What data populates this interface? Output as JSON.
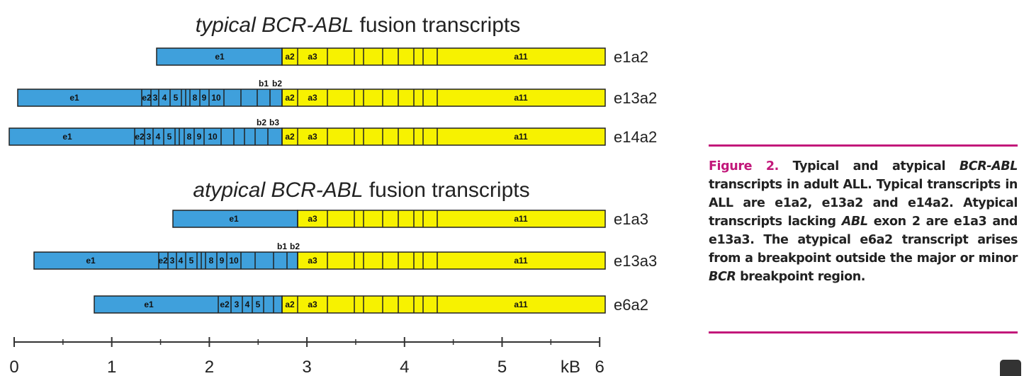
{
  "figure": {
    "typical_title": {
      "italic": "typical BCR-ABL",
      "rest": "fusion transcripts"
    },
    "atypical_title": {
      "italic": "atypical BCR-ABL",
      "rest": "fusion transcripts"
    },
    "rows": [
      {
        "name": "e1a2",
        "exons": [
          "e1",
          "a2",
          "a3",
          "a11"
        ],
        "above": []
      },
      {
        "name": "e13a2",
        "exons": [
          "e1",
          "e2",
          "3",
          "4",
          "5",
          "8",
          "9",
          "10",
          "a2",
          "a3",
          "a11"
        ],
        "above": [
          "b1",
          "b2"
        ]
      },
      {
        "name": "e14a2",
        "exons": [
          "e1",
          "e2",
          "3",
          "4",
          "5",
          "8",
          "9",
          "10",
          "a2",
          "a3",
          "a11"
        ],
        "above": [
          "b2",
          "b3"
        ]
      },
      {
        "name": "e1a3",
        "exons": [
          "e1",
          "a3",
          "a11"
        ],
        "above": []
      },
      {
        "name": "e13a3",
        "exons": [
          "e1",
          "e2",
          "3",
          "4",
          "5",
          "8",
          "9",
          "10",
          "a3",
          "a11"
        ],
        "above": [
          "b1",
          "b2"
        ]
      },
      {
        "name": "e6a2",
        "exons": [
          "e1",
          "e2",
          "3",
          "4",
          "5",
          "a2",
          "a3",
          "a11"
        ],
        "above": []
      }
    ],
    "axis": {
      "ticks": [
        "0",
        "1",
        "2",
        "3",
        "4",
        "5",
        "6"
      ],
      "unit": "kB"
    }
  },
  "caption": {
    "runs": [
      "Figure 2.",
      " Typical and atypical ",
      "BCR-ABL",
      " transcripts in adult ALL. Typical transcripts in ALL are e1a2, e13a2 and e14a2. Atypical transcripts lacking ",
      "ABL",
      " exon 2 are e1a3 and e13a3. The atypical e6a2 transcript arises from a breakpoint outside the major or minor ",
      "BCR",
      " breakpoint region."
    ]
  }
}
